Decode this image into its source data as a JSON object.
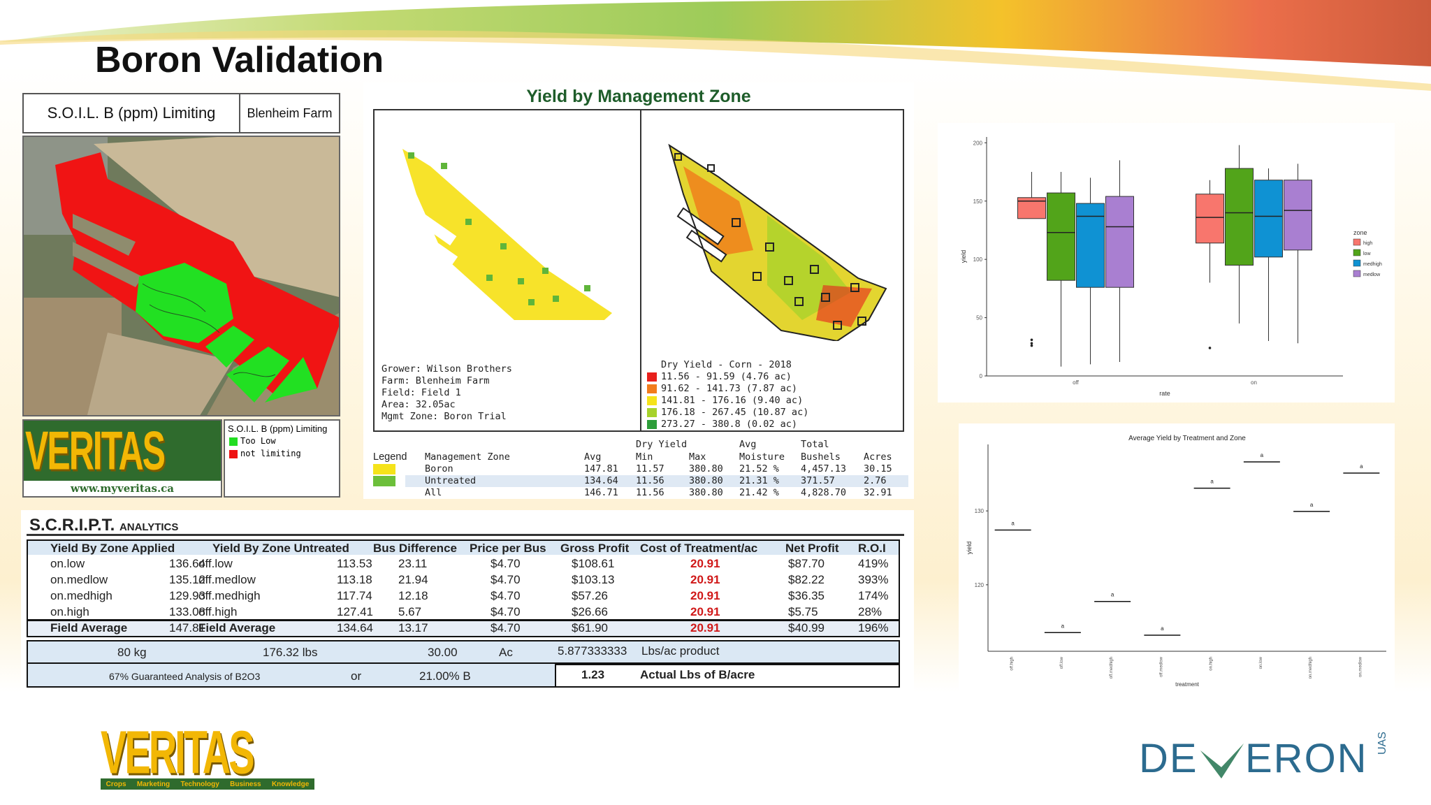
{
  "slide": {
    "title": "Boron Validation"
  },
  "soil_panel": {
    "header_main": "S.O.I.L. B (ppm) Limiting",
    "header_farm": "Blenheim Farm",
    "legend_title": "S.O.I.L. B (ppm) Limiting",
    "legend_items": [
      {
        "label": "Too Low",
        "color": "#22dd22"
      },
      {
        "label": "not limiting",
        "color": "#ee1111"
      }
    ],
    "brand": "VERITAS",
    "website": "www.myveritas.ca"
  },
  "yield_map": {
    "title": "Yield by Management Zone",
    "left_info": [
      "Grower: Wilson Brothers",
      "Farm: Blenheim Farm",
      "Field: Field 1",
      "Area: 32.05ac",
      "Mgmt Zone: Boron Trial"
    ],
    "right_legend_title": "Dry Yield - Corn - 2018",
    "right_legend": [
      {
        "label": "11.56 - 91.59 (4.76 ac)",
        "color": "#e8201c"
      },
      {
        "label": "91.62 - 141.73 (7.87 ac)",
        "color": "#f27c1c"
      },
      {
        "label": "141.81 - 176.16 (9.40 ac)",
        "color": "#f5e31a"
      },
      {
        "label": "176.18 - 267.45 (10.87 ac)",
        "color": "#a6d22b"
      },
      {
        "label": "273.27 - 380.8 (0.02 ac)",
        "color": "#2e9e3a"
      }
    ],
    "summary": {
      "legend_label": "Legend",
      "headers": [
        "Management Zone",
        "Avg",
        "Dry Yield\nMin",
        "Max",
        "Avg\nMoisture",
        "Total\nBushels",
        "Acres"
      ],
      "h_zone": "Management Zone",
      "h_avg": "Avg",
      "h_dry": "Dry Yield",
      "h_min": "Min",
      "h_max": "Max",
      "h_avg2": "Avg",
      "h_moist": "Moisture",
      "h_total": "Total",
      "h_bushels": "Bushels",
      "h_acres": "Acres",
      "rows": [
        {
          "zone": "Boron",
          "avg": "147.81",
          "min": "11.57",
          "max": "380.80",
          "moist": "21.52 %",
          "bushels": "4,457.13",
          "acres": "30.15",
          "color": "#f5e31a"
        },
        {
          "zone": "Untreated",
          "avg": "134.64",
          "min": "11.56",
          "max": "380.80",
          "moist": "21.31 %",
          "bushels": "371.57",
          "acres": "2.76",
          "color": "#6cbf3a"
        },
        {
          "zone": "All",
          "avg": "146.71",
          "min": "11.56",
          "max": "380.80",
          "moist": "21.42 %",
          "bushels": "4,828.70",
          "acres": "32.91",
          "color": ""
        }
      ]
    }
  },
  "script_table": {
    "title_main": "S.C.R.I.P.T.",
    "title_sub": "ANALYTICS",
    "headers": {
      "applied": "Yield By Zone Applied",
      "untreated": "Yield By Zone Untreated",
      "diff": "Bus Difference",
      "price": "Price per Bus",
      "gross": "Gross Profit",
      "cost": "Cost of Treatment/ac",
      "net": "Net Profit",
      "roi": "R.O.I"
    },
    "rows": [
      {
        "zone_a": "on.low",
        "val_a": "136.64",
        "zone_u": "off.low",
        "val_u": "113.53",
        "diff": "23.11",
        "price": "$4.70",
        "gross": "$108.61",
        "cost": "20.91",
        "net": "$87.70",
        "roi": "419%"
      },
      {
        "zone_a": "on.medlow",
        "val_a": "135.12",
        "zone_u": "off.medlow",
        "val_u": "113.18",
        "diff": "21.94",
        "price": "$4.70",
        "gross": "$103.13",
        "cost": "20.91",
        "net": "$82.22",
        "roi": "393%"
      },
      {
        "zone_a": "on.medhigh",
        "val_a": "129.93",
        "zone_u": "off.medhigh",
        "val_u": "117.74",
        "diff": "12.18",
        "price": "$4.70",
        "gross": "$57.26",
        "cost": "20.91",
        "net": "$36.35",
        "roi": "174%"
      },
      {
        "zone_a": "on.high",
        "val_a": "133.08",
        "zone_u": "off.high",
        "val_u": "127.41",
        "diff": "5.67",
        "price": "$4.70",
        "gross": "$26.66",
        "cost": "20.91",
        "net": "$5.75",
        "roi": "28%"
      },
      {
        "zone_a": "Field Average",
        "val_a": "147.81",
        "zone_u": "Field Average",
        "val_u": "134.64",
        "diff": "13.17",
        "price": "$4.70",
        "gross": "$61.90",
        "cost": "20.91",
        "net": "$40.99",
        "roi": "196%"
      }
    ],
    "calc": {
      "kg": "80  kg",
      "lbs": "176.32  lbs",
      "ac_val": "30.00",
      "ac_unit": "Ac",
      "product_val": "5.877333333",
      "product_unit": "Lbs/ac product",
      "guarantee": "67%  Guaranteed Analysis of B2O3",
      "or": "or",
      "pct_b": "21.00%  B",
      "actual_val": "1.23",
      "actual_unit": "Actual Lbs of B/acre"
    }
  },
  "footer": {
    "brand": "VERITAS",
    "tagline": [
      "Crops",
      "Marketing",
      "Technology",
      "Business",
      "Knowledge"
    ],
    "partner_a": "DE",
    "partner_b": "ERON",
    "partner_suffix": "UAS"
  },
  "chart_data": [
    {
      "type": "box",
      "xlabel": "rate",
      "ylabel": "yield",
      "categories": [
        "off",
        "on"
      ],
      "y_ticks": [
        "0",
        "50",
        "100",
        "150",
        "200"
      ],
      "ylim": [
        0,
        205
      ],
      "legend_title": "zone",
      "legend_placement": "right",
      "series": [
        {
          "name": "high",
          "color": "#f8766d",
          "boxes": [
            {
              "q1": 135,
              "median": 150,
              "q3": 153,
              "wmin": 135,
              "wmax": 175,
              "outliers": [
                28,
                31,
                26
              ]
            },
            {
              "q1": 114,
              "median": 136,
              "q3": 156,
              "wmin": 80,
              "wmax": 168,
              "outliers": [
                24
              ]
            }
          ]
        },
        {
          "name": "low",
          "color": "#52a41a",
          "boxes": [
            {
              "q1": 82,
              "median": 123,
              "q3": 157,
              "wmin": 8,
              "wmax": 175,
              "outliers": []
            },
            {
              "q1": 95,
              "median": 140,
              "q3": 178,
              "wmin": 45,
              "wmax": 198,
              "outliers": []
            }
          ]
        },
        {
          "name": "medhigh",
          "color": "#0f92d3",
          "boxes": [
            {
              "q1": 76,
              "median": 137,
              "q3": 148,
              "wmin": 10,
              "wmax": 170,
              "outliers": []
            },
            {
              "q1": 102,
              "median": 137,
              "q3": 168,
              "wmin": 30,
              "wmax": 178,
              "outliers": []
            }
          ]
        },
        {
          "name": "medlow",
          "color": "#a97fd1",
          "boxes": [
            {
              "q1": 76,
              "median": 128,
              "q3": 154,
              "wmin": 12,
              "wmax": 185,
              "outliers": []
            },
            {
              "q1": 108,
              "median": 142,
              "q3": 168,
              "wmin": 28,
              "wmax": 182,
              "outliers": []
            }
          ]
        }
      ]
    },
    {
      "type": "scatter",
      "title": "Average Yield by Treatment and Zone",
      "xlabel": "treatment",
      "ylabel": "yield",
      "categories": [
        "off.high",
        "off.low",
        "off.medhigh",
        "off.medlow",
        "on.high",
        "on.low",
        "on.medhigh",
        "on.medlow"
      ],
      "values": [
        127.41,
        113.53,
        117.74,
        113.18,
        133.08,
        136.64,
        129.93,
        135.12
      ],
      "point_labels": [
        "a",
        "a",
        "a",
        "a",
        "a",
        "a",
        "a",
        "a"
      ],
      "y_ticks": [
        "120",
        "130"
      ],
      "ylim": [
        111,
        139
      ]
    }
  ]
}
